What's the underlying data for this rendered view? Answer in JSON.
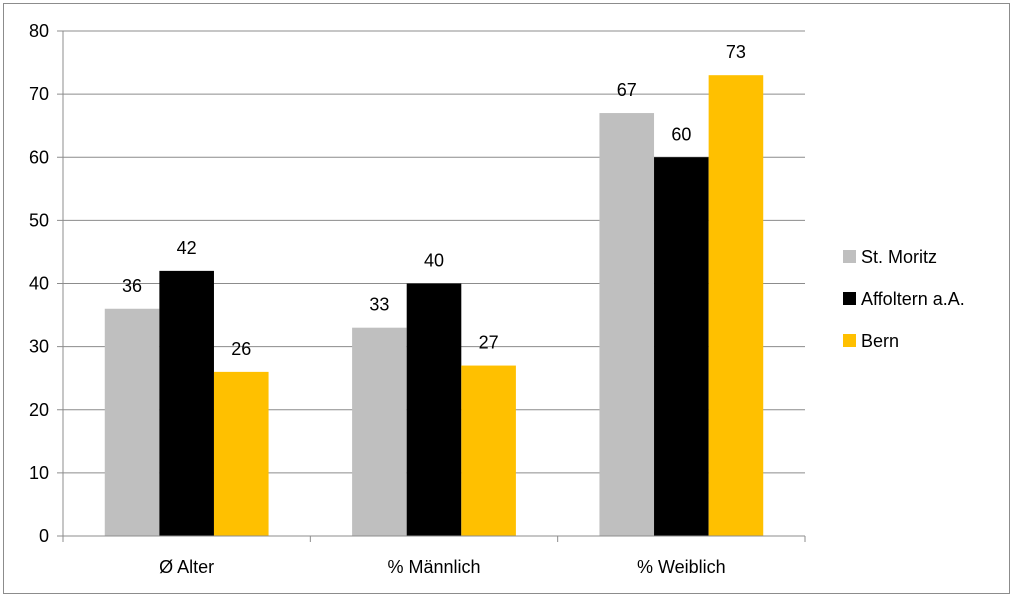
{
  "chart_data": {
    "type": "bar",
    "title": "",
    "xlabel": "",
    "ylabel": "",
    "ylim": [
      0,
      80
    ],
    "yticks": [
      0,
      10,
      20,
      30,
      40,
      50,
      60,
      70,
      80
    ],
    "grid": true,
    "legend_position": "right",
    "categories": [
      "Ø Alter",
      "% Männlich",
      "% Weiblich"
    ],
    "series": [
      {
        "name": "St. Moritz",
        "color": "#bfbfbf",
        "values": [
          36,
          33,
          67
        ]
      },
      {
        "name": "Affoltern a.A.",
        "color": "#000000",
        "values": [
          42,
          40,
          60
        ]
      },
      {
        "name": "Bern",
        "color": "#ffc000",
        "values": [
          26,
          27,
          73
        ]
      }
    ]
  }
}
